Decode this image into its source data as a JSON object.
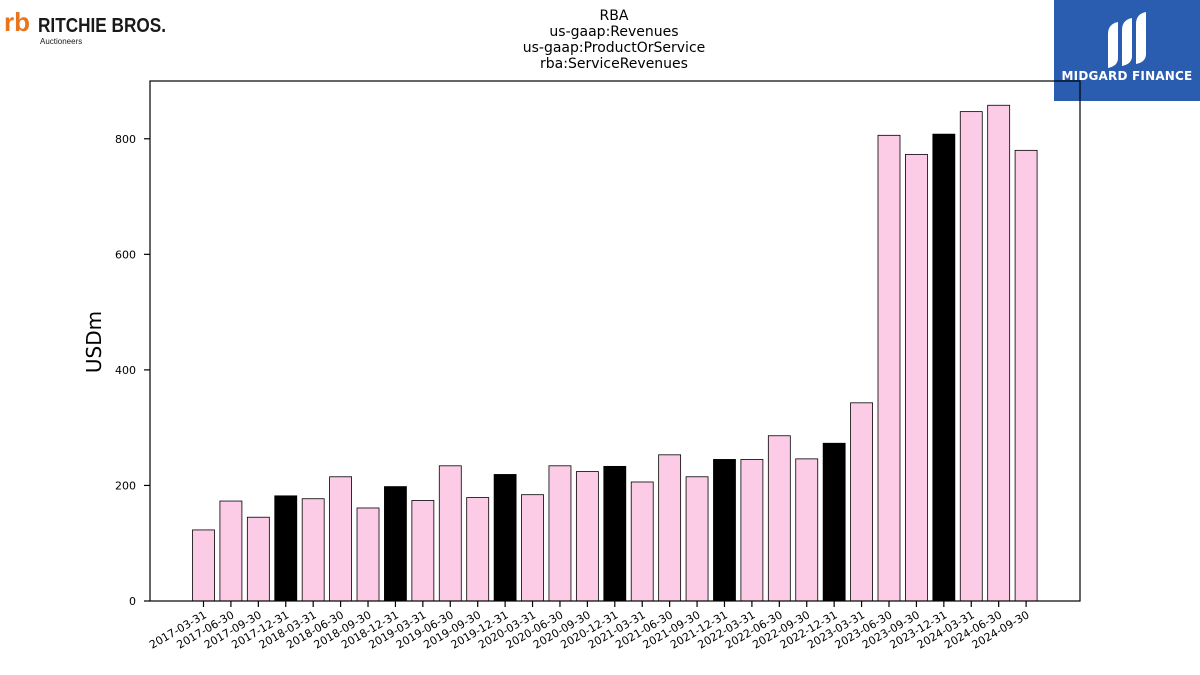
{
  "logos": {
    "left_main": "RITCHIE BROS.",
    "left_sub": "Auctioneers",
    "left_glyph": "rb",
    "right_name": "MIDGARD FINANCE"
  },
  "colors": {
    "bar_default": "#fccbe6",
    "bar_highlight": "#000000",
    "edge": "#000000",
    "midgard_bg": "#2a5db0",
    "ritchie_orange": "#e8741e"
  },
  "chart_data": {
    "type": "bar",
    "title_lines": [
      "RBA",
      "us-gaap:Revenues",
      "us-gaap:ProductOrService",
      "rba:ServiceRevenues"
    ],
    "xlabel": "",
    "ylabel": "USDm",
    "ylim": [
      0,
      900
    ],
    "yticks": [
      0,
      200,
      400,
      600,
      800
    ],
    "grid": false,
    "categories": [
      "2017-03-31",
      "2017-06-30",
      "2017-09-30",
      "2017-12-31",
      "2018-03-31",
      "2018-06-30",
      "2018-09-30",
      "2018-12-31",
      "2019-03-31",
      "2019-06-30",
      "2019-09-30",
      "2019-12-31",
      "2020-03-31",
      "2020-06-30",
      "2020-09-30",
      "2020-12-31",
      "2021-03-31",
      "2021-06-30",
      "2021-09-30",
      "2021-12-31",
      "2022-03-31",
      "2022-06-30",
      "2022-09-30",
      "2022-12-31",
      "2023-03-31",
      "2023-06-30",
      "2023-09-30",
      "2023-12-31",
      "2024-03-31",
      "2024-06-30",
      "2024-09-30"
    ],
    "values": [
      123,
      173,
      145,
      182,
      177,
      215,
      161,
      198,
      174,
      234,
      179,
      219,
      184,
      234,
      224,
      233,
      206,
      253,
      215,
      245,
      245,
      286,
      246,
      273,
      343,
      806,
      773,
      808,
      847,
      858,
      780
    ],
    "highlighted": [
      false,
      false,
      false,
      true,
      false,
      false,
      false,
      true,
      false,
      false,
      false,
      true,
      false,
      false,
      false,
      true,
      false,
      false,
      false,
      true,
      false,
      false,
      false,
      true,
      false,
      false,
      false,
      true,
      false,
      false,
      false
    ]
  }
}
